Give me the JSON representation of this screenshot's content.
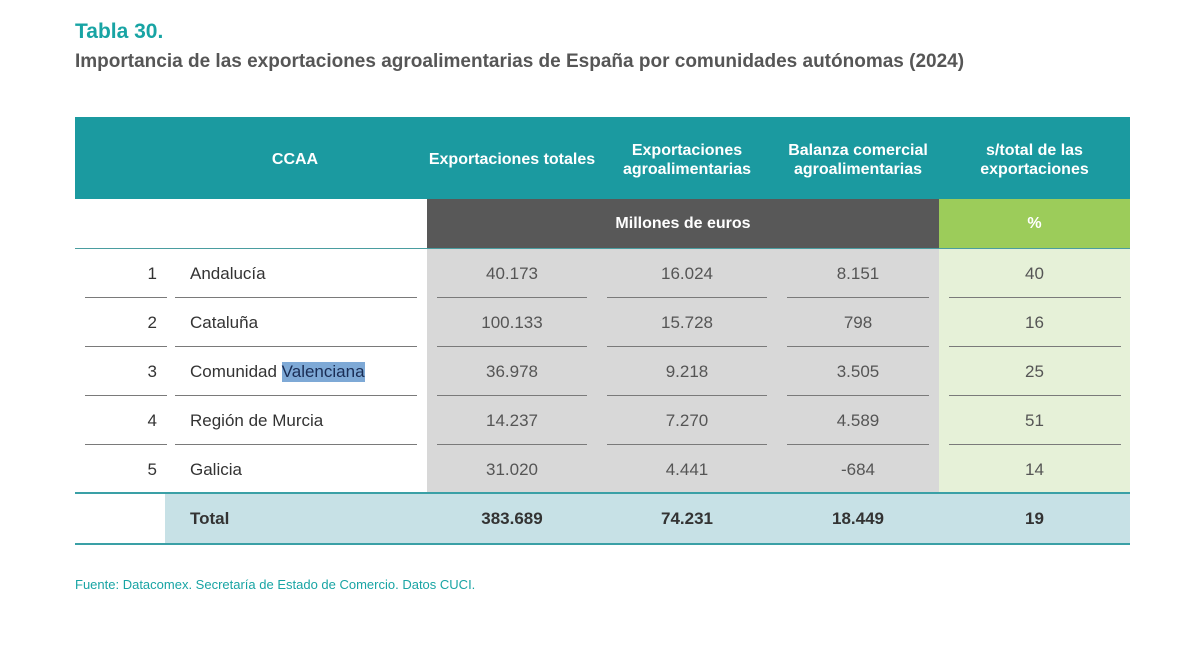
{
  "title": "Tabla 30.",
  "subtitle": "Importancia de las exportaciones agroalimentarias de España por comunidades autónomas (2024)",
  "table": {
    "headers": {
      "ccaa": "CCAA",
      "col1": "Exportaciones totales",
      "col2": "Exportaciones agroalimentarias",
      "col3": "Balanza comercial agroalimentarias",
      "col4": "s/total de las exportaciones"
    },
    "units": {
      "money": "Millones de euros",
      "percent": "%"
    },
    "rows": [
      {
        "num": "1",
        "name": "Andalucía",
        "v1": "40.173",
        "v2": "16.024",
        "v3": "8.151",
        "v4": "40"
      },
      {
        "num": "2",
        "name": "Cataluña",
        "v1": "100.133",
        "v2": "15.728",
        "v3": "798",
        "v4": "16"
      },
      {
        "num": "3",
        "name_prefix": "Comunidad ",
        "name_highlight": "Valenciana",
        "v1": "36.978",
        "v2": "9.218",
        "v3": "3.505",
        "v4": "25"
      },
      {
        "num": "4",
        "name": "Región de Murcia",
        "v1": "14.237",
        "v2": "7.270",
        "v3": "4.589",
        "v4": "51"
      },
      {
        "num": "5",
        "name": "Galicia",
        "v1": "31.020",
        "v2": "4.441",
        "v3": "-684",
        "v4": "14"
      }
    ],
    "total": {
      "label": "Total",
      "v1": "383.689",
      "v2": "74.231",
      "v3": "18.449",
      "v4": "19"
    }
  },
  "source": "Fuente: Datacomex. Secretaría de Estado de Comercio. Datos CUCI.",
  "colors": {
    "teal": "#1b9aa0",
    "gray": "#585858",
    "green": "#9ccc5a",
    "highlight": "#7ea9d6"
  }
}
